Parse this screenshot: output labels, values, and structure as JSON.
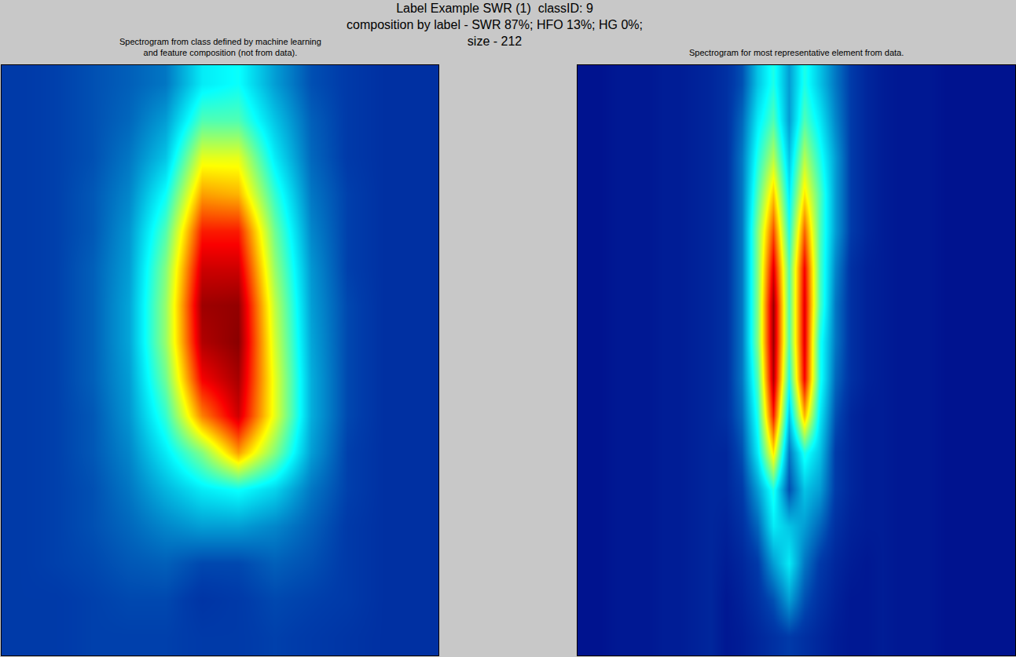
{
  "title": [
    "Label Example SWR (1)  classID: 9",
    "composition by label - SWR 87%; HFO 13%; HG 0%;",
    "size - 212"
  ],
  "chart_data": [
    {
      "type": "heatmap",
      "title": [
        "Spectrogram from class defined by machine learning",
        "and feature composition (not from data)."
      ],
      "color": "Jet",
      "zlim": [
        0,
        1
      ],
      "tick_labels": false,
      "cells": [
        [
          0.12,
          0.13,
          0.15,
          0.17,
          0.2,
          0.35,
          0.38,
          0.25,
          0.15,
          0.12,
          0.1,
          0.1
        ],
        [
          0.12,
          0.13,
          0.15,
          0.18,
          0.25,
          0.45,
          0.45,
          0.3,
          0.17,
          0.12,
          0.1,
          0.1
        ],
        [
          0.12,
          0.13,
          0.15,
          0.2,
          0.3,
          0.6,
          0.6,
          0.35,
          0.18,
          0.12,
          0.1,
          0.1
        ],
        [
          0.12,
          0.13,
          0.16,
          0.22,
          0.38,
          0.72,
          0.7,
          0.42,
          0.2,
          0.13,
          0.1,
          0.1
        ],
        [
          0.12,
          0.13,
          0.16,
          0.24,
          0.45,
          0.85,
          0.85,
          0.48,
          0.22,
          0.13,
          0.1,
          0.1
        ],
        [
          0.12,
          0.13,
          0.17,
          0.25,
          0.5,
          0.92,
          0.92,
          0.52,
          0.24,
          0.13,
          0.1,
          0.1
        ],
        [
          0.12,
          0.13,
          0.17,
          0.26,
          0.52,
          0.97,
          0.98,
          0.56,
          0.25,
          0.14,
          0.1,
          0.1
        ],
        [
          0.12,
          0.13,
          0.17,
          0.26,
          0.52,
          0.95,
          0.99,
          0.58,
          0.26,
          0.14,
          0.1,
          0.1
        ],
        [
          0.12,
          0.13,
          0.17,
          0.25,
          0.48,
          0.88,
          0.96,
          0.6,
          0.27,
          0.14,
          0.1,
          0.1
        ],
        [
          0.12,
          0.13,
          0.16,
          0.24,
          0.42,
          0.75,
          0.92,
          0.6,
          0.27,
          0.14,
          0.1,
          0.1
        ],
        [
          0.12,
          0.13,
          0.16,
          0.22,
          0.35,
          0.5,
          0.72,
          0.5,
          0.25,
          0.13,
          0.1,
          0.1
        ],
        [
          0.12,
          0.13,
          0.15,
          0.2,
          0.28,
          0.35,
          0.38,
          0.32,
          0.2,
          0.13,
          0.1,
          0.1
        ],
        [
          0.12,
          0.13,
          0.15,
          0.18,
          0.22,
          0.25,
          0.25,
          0.22,
          0.17,
          0.12,
          0.1,
          0.1
        ],
        [
          0.12,
          0.13,
          0.14,
          0.16,
          0.17,
          0.14,
          0.14,
          0.17,
          0.15,
          0.12,
          0.1,
          0.1
        ],
        [
          0.12,
          0.12,
          0.13,
          0.14,
          0.14,
          0.11,
          0.12,
          0.14,
          0.13,
          0.12,
          0.1,
          0.1
        ],
        [
          0.12,
          0.12,
          0.13,
          0.13,
          0.13,
          0.12,
          0.12,
          0.13,
          0.12,
          0.11,
          0.1,
          0.1
        ]
      ]
    },
    {
      "type": "heatmap",
      "title": [
        "Spectrogram for most representative element from data."
      ],
      "color": "Jet",
      "zlim": [
        0,
        1
      ],
      "tick_labels": false,
      "cells": [
        [
          0.04,
          0.04,
          0.05,
          0.05,
          0.05,
          0.06,
          0.06,
          0.07,
          0.08,
          0.1,
          0.15,
          0.3,
          0.4,
          0.25,
          0.4,
          0.3,
          0.2,
          0.12,
          0.08,
          0.06,
          0.05,
          0.05,
          0.05,
          0.04,
          0.04,
          0.04,
          0.04,
          0.04
        ],
        [
          0.04,
          0.04,
          0.05,
          0.05,
          0.05,
          0.06,
          0.06,
          0.07,
          0.08,
          0.1,
          0.18,
          0.35,
          0.45,
          0.25,
          0.45,
          0.35,
          0.22,
          0.12,
          0.08,
          0.06,
          0.05,
          0.05,
          0.05,
          0.04,
          0.04,
          0.04,
          0.04,
          0.04
        ],
        [
          0.04,
          0.04,
          0.05,
          0.05,
          0.05,
          0.06,
          0.06,
          0.07,
          0.08,
          0.1,
          0.2,
          0.4,
          0.55,
          0.3,
          0.55,
          0.4,
          0.25,
          0.12,
          0.08,
          0.06,
          0.05,
          0.05,
          0.05,
          0.04,
          0.04,
          0.04,
          0.04,
          0.04
        ],
        [
          0.04,
          0.04,
          0.05,
          0.05,
          0.05,
          0.06,
          0.06,
          0.07,
          0.08,
          0.1,
          0.2,
          0.45,
          0.68,
          0.35,
          0.65,
          0.45,
          0.25,
          0.12,
          0.08,
          0.06,
          0.05,
          0.05,
          0.05,
          0.04,
          0.04,
          0.04,
          0.04,
          0.04
        ],
        [
          0.04,
          0.04,
          0.05,
          0.05,
          0.05,
          0.06,
          0.06,
          0.07,
          0.08,
          0.1,
          0.2,
          0.5,
          0.8,
          0.4,
          0.78,
          0.45,
          0.25,
          0.12,
          0.08,
          0.06,
          0.05,
          0.05,
          0.05,
          0.04,
          0.04,
          0.04,
          0.04,
          0.04
        ],
        [
          0.04,
          0.04,
          0.05,
          0.05,
          0.05,
          0.06,
          0.06,
          0.07,
          0.08,
          0.1,
          0.2,
          0.5,
          0.9,
          0.45,
          0.88,
          0.45,
          0.22,
          0.1,
          0.07,
          0.06,
          0.05,
          0.05,
          0.05,
          0.04,
          0.04,
          0.04,
          0.04,
          0.04
        ],
        [
          0.04,
          0.04,
          0.05,
          0.05,
          0.05,
          0.06,
          0.06,
          0.07,
          0.08,
          0.1,
          0.2,
          0.5,
          0.97,
          0.45,
          0.9,
          0.45,
          0.2,
          0.1,
          0.07,
          0.06,
          0.05,
          0.05,
          0.05,
          0.04,
          0.04,
          0.04,
          0.04,
          0.04
        ],
        [
          0.04,
          0.04,
          0.05,
          0.05,
          0.05,
          0.06,
          0.06,
          0.07,
          0.08,
          0.1,
          0.2,
          0.5,
          0.97,
          0.45,
          0.9,
          0.4,
          0.2,
          0.1,
          0.07,
          0.06,
          0.05,
          0.05,
          0.05,
          0.04,
          0.04,
          0.04,
          0.04,
          0.04
        ],
        [
          0.04,
          0.04,
          0.05,
          0.05,
          0.05,
          0.06,
          0.06,
          0.07,
          0.08,
          0.1,
          0.2,
          0.45,
          0.95,
          0.4,
          0.88,
          0.4,
          0.18,
          0.1,
          0.07,
          0.06,
          0.05,
          0.05,
          0.05,
          0.04,
          0.04,
          0.04,
          0.04,
          0.04
        ],
        [
          0.04,
          0.04,
          0.05,
          0.05,
          0.05,
          0.06,
          0.06,
          0.07,
          0.08,
          0.1,
          0.18,
          0.4,
          0.85,
          0.3,
          0.7,
          0.35,
          0.15,
          0.08,
          0.06,
          0.06,
          0.05,
          0.05,
          0.05,
          0.04,
          0.04,
          0.04,
          0.04,
          0.04
        ],
        [
          0.04,
          0.04,
          0.05,
          0.05,
          0.05,
          0.06,
          0.06,
          0.07,
          0.08,
          0.08,
          0.15,
          0.35,
          0.65,
          0.2,
          0.4,
          0.3,
          0.12,
          0.08,
          0.06,
          0.06,
          0.05,
          0.05,
          0.05,
          0.04,
          0.04,
          0.04,
          0.04,
          0.04
        ],
        [
          0.04,
          0.04,
          0.05,
          0.05,
          0.05,
          0.06,
          0.06,
          0.07,
          0.08,
          0.08,
          0.12,
          0.25,
          0.4,
          0.15,
          0.3,
          0.25,
          0.12,
          0.08,
          0.06,
          0.06,
          0.05,
          0.05,
          0.05,
          0.04,
          0.04,
          0.04,
          0.04,
          0.04
        ],
        [
          0.04,
          0.04,
          0.05,
          0.05,
          0.05,
          0.06,
          0.06,
          0.07,
          0.08,
          0.07,
          0.1,
          0.18,
          0.35,
          0.3,
          0.25,
          0.18,
          0.1,
          0.07,
          0.06,
          0.06,
          0.05,
          0.05,
          0.05,
          0.04,
          0.04,
          0.04,
          0.04,
          0.04
        ],
        [
          0.04,
          0.04,
          0.05,
          0.05,
          0.05,
          0.06,
          0.06,
          0.07,
          0.08,
          0.06,
          0.08,
          0.12,
          0.25,
          0.35,
          0.2,
          0.12,
          0.08,
          0.06,
          0.05,
          0.06,
          0.05,
          0.05,
          0.05,
          0.04,
          0.04,
          0.04,
          0.04,
          0.04
        ],
        [
          0.04,
          0.04,
          0.05,
          0.05,
          0.05,
          0.06,
          0.06,
          0.07,
          0.08,
          0.05,
          0.07,
          0.1,
          0.15,
          0.25,
          0.15,
          0.1,
          0.07,
          0.05,
          0.05,
          0.06,
          0.05,
          0.05,
          0.05,
          0.04,
          0.04,
          0.04,
          0.04,
          0.04
        ],
        [
          0.04,
          0.04,
          0.05,
          0.05,
          0.05,
          0.06,
          0.06,
          0.07,
          0.08,
          0.05,
          0.06,
          0.08,
          0.1,
          0.12,
          0.1,
          0.08,
          0.06,
          0.05,
          0.05,
          0.06,
          0.05,
          0.05,
          0.05,
          0.04,
          0.04,
          0.04,
          0.04,
          0.04
        ]
      ]
    }
  ]
}
